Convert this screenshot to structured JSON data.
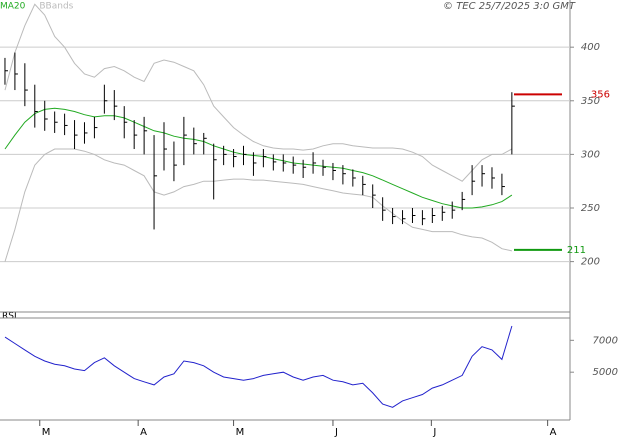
{
  "chart_data": {
    "type": "ohlc",
    "title": "© TEC 25/7/2025 3:0 GMT",
    "xlim": [
      -0.5,
      56.85
    ],
    "xticks": [
      {
        "value": 3.5,
        "label": "M"
      },
      {
        "value": 13.4,
        "label": "A"
      },
      {
        "value": 23,
        "label": "M"
      },
      {
        "value": 33,
        "label": "J"
      },
      {
        "value": 42.9,
        "label": "J"
      },
      {
        "value": 54.6,
        "label": "A"
      }
    ],
    "ylim": [
      153,
      444
    ],
    "yticks": [
      200,
      250,
      300,
      350,
      400
    ],
    "grid": true,
    "ohlc": {
      "color": "#000000",
      "high": [
        390,
        395,
        385,
        365,
        350,
        340,
        338,
        332,
        330,
        335,
        365,
        360,
        345,
        332,
        335,
        318,
        330,
        312,
        335,
        325,
        320,
        310,
        308,
        305,
        308,
        302,
        305,
        300,
        300,
        298,
        295,
        302,
        295,
        292,
        290,
        286,
        280,
        272,
        260,
        250,
        248,
        250,
        248,
        250,
        252,
        256,
        265,
        290,
        290,
        288,
        282,
        358
      ],
      "low": [
        365,
        360,
        345,
        325,
        322,
        320,
        318,
        305,
        310,
        315,
        338,
        332,
        315,
        305,
        300,
        230,
        285,
        275,
        290,
        300,
        300,
        258,
        290,
        288,
        290,
        280,
        288,
        285,
        284,
        282,
        278,
        282,
        280,
        276,
        272,
        270,
        262,
        250,
        238,
        235,
        235,
        236,
        234,
        236,
        238,
        240,
        248,
        262,
        270,
        268,
        262,
        300
      ],
      "close": [
        378,
        375,
        360,
        340,
        333,
        330,
        327,
        318,
        320,
        325,
        350,
        345,
        330,
        318,
        322,
        280,
        305,
        290,
        318,
        310,
        315,
        295,
        300,
        298,
        300,
        292,
        298,
        293,
        292,
        290,
        288,
        292,
        288,
        285,
        282,
        278,
        272,
        262,
        248,
        242,
        240,
        243,
        240,
        243,
        246,
        248,
        258,
        275,
        282,
        278,
        270,
        345
      ]
    },
    "series": [
      {
        "name": "MA20",
        "color": "#22aa22",
        "values": [
          305,
          318,
          330,
          338,
          342,
          343,
          342,
          340,
          337,
          335,
          336,
          336,
          334,
          330,
          326,
          322,
          320,
          317,
          315,
          314,
          312,
          308,
          305,
          302,
          300,
          299,
          298,
          296,
          294,
          292,
          291,
          290,
          289,
          288,
          287,
          285,
          283,
          280,
          276,
          272,
          268,
          264,
          260,
          257,
          254,
          252,
          250,
          250,
          251,
          253,
          256,
          262
        ]
      },
      {
        "name": "BBands",
        "color": "#bbbbbb",
        "upper": [
          360,
          395,
          420,
          440,
          430,
          410,
          400,
          385,
          375,
          372,
          380,
          382,
          378,
          372,
          368,
          385,
          388,
          386,
          382,
          378,
          365,
          345,
          335,
          325,
          318,
          312,
          308,
          306,
          305,
          305,
          304,
          305,
          308,
          310,
          310,
          308,
          307,
          306,
          306,
          306,
          305,
          302,
          298,
          290,
          285,
          280,
          275,
          285,
          295,
          300,
          300,
          305
        ],
        "lower": [
          200,
          230,
          265,
          290,
          300,
          305,
          305,
          305,
          303,
          300,
          295,
          292,
          290,
          285,
          280,
          265,
          262,
          265,
          270,
          272,
          275,
          275,
          276,
          277,
          277,
          276,
          276,
          275,
          274,
          273,
          272,
          270,
          268,
          266,
          264,
          263,
          262,
          260,
          252,
          245,
          238,
          232,
          230,
          228,
          228,
          228,
          225,
          223,
          222,
          218,
          212,
          210
        ]
      }
    ],
    "levels": [
      {
        "value": 356,
        "color": "#cc0000"
      },
      {
        "value": 211,
        "color": "#119911"
      }
    ],
    "rsi": {
      "label": "RSI",
      "color": "#2222cc",
      "ylim": [
        20,
        84
      ],
      "yticks": [
        {
          "value": 70,
          "label": "7000"
        },
        {
          "value": 50,
          "label": "5000"
        }
      ],
      "values": [
        72,
        68,
        64,
        60,
        57,
        55,
        54,
        52,
        51,
        56,
        59,
        54,
        50,
        46,
        44,
        42,
        47,
        49,
        57,
        56,
        54,
        50,
        47,
        46,
        45,
        46,
        48,
        49,
        50,
        47,
        45,
        47,
        48,
        45,
        44,
        42,
        43,
        37,
        30,
        28,
        32,
        34,
        36,
        40,
        42,
        45,
        48,
        60,
        66,
        64,
        58,
        79
      ]
    }
  }
}
